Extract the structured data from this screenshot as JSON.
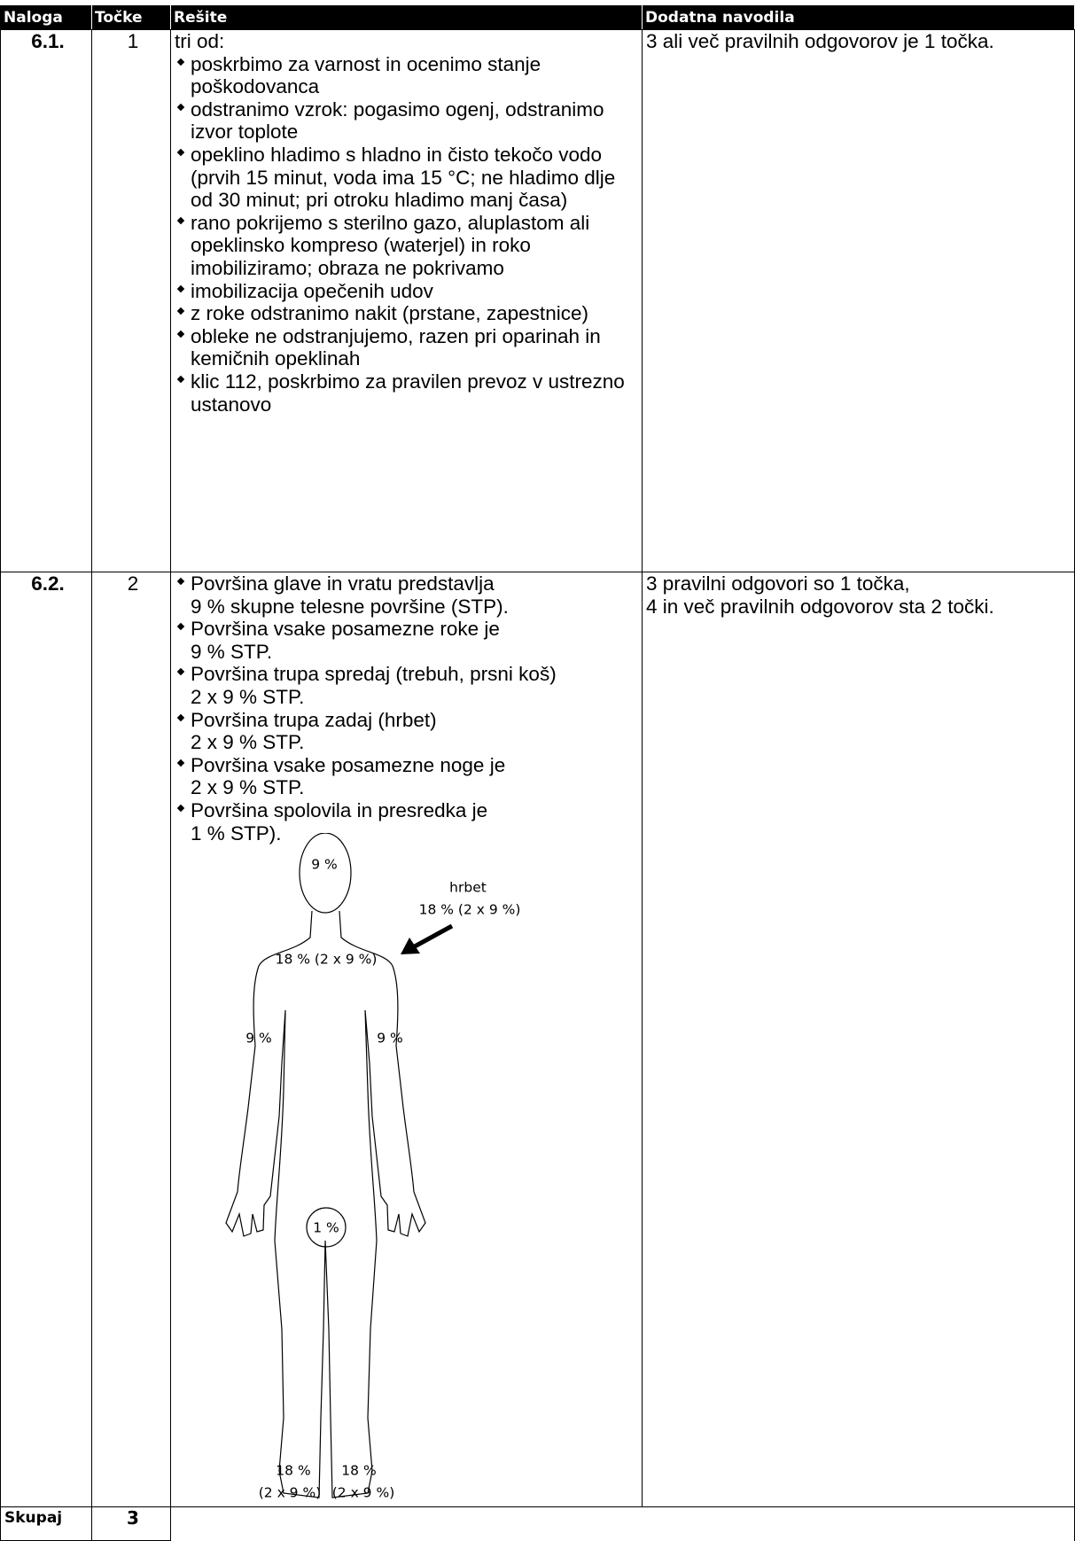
{
  "table": {
    "header": [
      "Naloga",
      "Točke",
      "Rešite",
      "Dodatna navodila"
    ],
    "rows": [
      {
        "task": "6.1.",
        "points": 1,
        "intro": "tri od:",
        "items": [
          "poskrbimo za varnost in ocenimo stanje poškodovanca",
          "odstranimo vzrok: pogasimo ogenj, odstranimo izvor toplote",
          "opeklino hladimo s hladno in čisto tekočo vodo (prvih 15 minut, voda ima 15 °C; ne hladimo dlje od 30 minut; pri otroku hladimo manj časa)",
          "rano pokrijemo s sterilno gazo, aluplastom ali opeklinsko kompreso (waterjel) in roko imobiliziramo; obraza ne pokrivamo",
          "imobilizacija opečenih udov",
          "z roke odstranimo nakit (prstane, zapestnice)",
          "obleke ne odstranjujemo, razen pri oparinah in kemičnih opeklinah",
          "klic 112, poskrbimo za pravilen prevoz v ustrezno ustanovo"
        ],
        "notes": [
          "3 ali več pravilnih odgovorov je 1 točka."
        ]
      },
      {
        "task": "6.2.",
        "points": 2,
        "items": [
          "Površina glave in vratu predstavlja\n9 % skupne telesne površine (STP).",
          "Površina vsake posamezne roke je\n9 % STP.",
          "Površina trupa spredaj (trebuh, prsni koš)\n2 x 9 % STP.",
          "Površina trupa zadaj (hrbet)\n2 x 9 % STP.",
          "Površina vsake posamezne noge je\n2 x 9 % STP.",
          "Površina spolovila in presredka je\n1 % STP)."
        ],
        "notes": [
          "3 pravilni odgovori so 1 točka,",
          "4 in več pravilnih odgovorov sta 2 točki."
        ],
        "figure": {
          "head": "9 %",
          "back_title": "hrbet",
          "back": "18 % (2 x 9 %)",
          "chest": "18 % (2 x 9 %)",
          "left_arm": "9 %",
          "right_arm": "9 %",
          "genitals": "1 %",
          "left_leg": [
            "18 %",
            "(2 x 9 %)"
          ],
          "right_leg": [
            "18 %",
            "(2 x 9 %)"
          ]
        }
      }
    ],
    "total": {
      "label": "Skupaj",
      "points": 3
    }
  }
}
